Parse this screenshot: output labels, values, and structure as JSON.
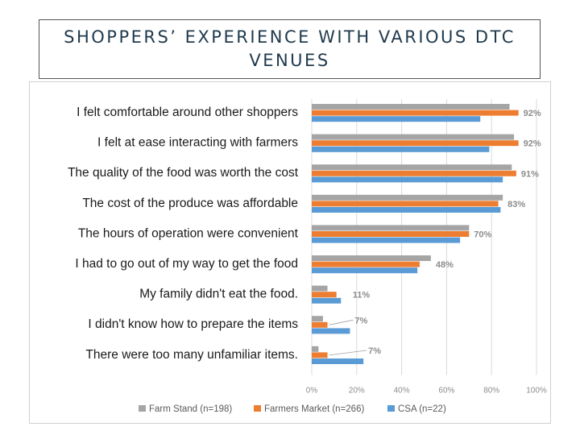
{
  "slide": {
    "title": "SHOPPERS’ EXPERIENCE WITH VARIOUS DTC VENUES"
  },
  "chart_data": {
    "type": "bar",
    "orientation": "horizontal",
    "categories": [
      "I felt comfortable around other shoppers",
      "I felt at ease interacting with farmers",
      "The quality of the food was worth the cost",
      "The cost of the produce was affordable",
      "The hours of operation were convenient",
      "I had to go out of my way to get the food",
      "My family didn't eat the food.",
      "I didn't know how to prepare the items",
      "There were too many unfamiliar items."
    ],
    "series": [
      {
        "name": "Farm Stand (n=198)",
        "color": "#a5a5a5",
        "values": [
          88,
          90,
          89,
          85,
          70,
          53,
          7,
          5,
          3
        ]
      },
      {
        "name": "Farmers Market (n=266)",
        "color": "#ed7d31",
        "values": [
          92,
          92,
          91,
          83,
          70,
          48,
          11,
          7,
          7
        ]
      },
      {
        "name": "CSA (n=22)",
        "color": "#5b9bd5",
        "values": [
          75,
          79,
          85,
          84,
          66,
          47,
          13,
          17,
          23
        ]
      }
    ],
    "data_labels": [
      "92%",
      "92%",
      "91%",
      "83%",
      "70%",
      "48%",
      "11%",
      "7%",
      "7%"
    ],
    "x_ticks": [
      "0%",
      "20%",
      "40%",
      "60%",
      "80%",
      "100%"
    ],
    "xlim": [
      0,
      100
    ],
    "grid": true,
    "legend_position": "bottom"
  }
}
